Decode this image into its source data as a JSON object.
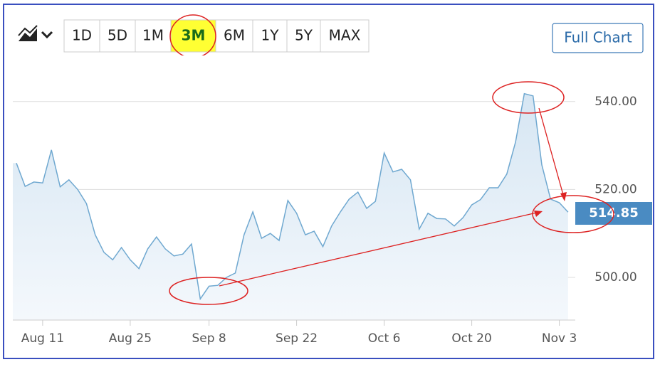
{
  "toolbar": {
    "ranges": [
      "1D",
      "5D",
      "1M",
      "3M",
      "6M",
      "1Y",
      "5Y",
      "MAX"
    ],
    "selected": 3,
    "full_chart": "Full Chart"
  },
  "chart_data": {
    "type": "line",
    "color": "#6fa8d0",
    "grid": true,
    "categories": [
      null,
      null,
      null,
      "Aug 11",
      null,
      null,
      null,
      null,
      null,
      null,
      null,
      null,
      null,
      "Aug 25",
      null,
      null,
      null,
      null,
      null,
      null,
      null,
      null,
      "Sep 8",
      null,
      null,
      null,
      null,
      null,
      null,
      null,
      null,
      null,
      "Sep 22",
      null,
      null,
      null,
      null,
      null,
      null,
      null,
      null,
      null,
      "Oct 6",
      null,
      null,
      null,
      null,
      null,
      null,
      null,
      null,
      null,
      "Oct 20",
      null,
      null,
      null,
      null,
      null,
      null,
      null,
      null,
      null,
      "Nov 3",
      null
    ],
    "values": [
      526,
      520.7,
      521.7,
      521.5,
      529,
      520.6,
      522.2,
      520,
      516.8,
      509.7,
      505.7,
      504,
      506.8,
      504,
      502,
      506.5,
      509.2,
      506.5,
      504.9,
      505.3,
      507.6,
      495.1,
      498,
      498.2,
      500,
      501,
      509.7,
      514.9,
      508.9,
      510,
      508.4,
      517.5,
      514.6,
      509.7,
      510.5,
      507,
      511.7,
      514.9,
      517.8,
      519.4,
      515.7,
      517.3,
      528.3,
      524,
      524.6,
      522.2,
      511,
      514.6,
      513.4,
      513.3,
      511.7,
      513.6,
      516.5,
      517.7,
      520.4,
      520.4,
      523.5,
      530.8,
      541.8,
      541.3,
      525.6,
      517.8,
      517,
      514.85
    ],
    "ylim": [
      490.3,
      550
    ],
    "yticks": [
      {
        "value": 500,
        "label": "500.00"
      },
      {
        "value": 520,
        "label": "520.00"
      },
      {
        "value": 540,
        "label": "540.00"
      }
    ]
  }
}
